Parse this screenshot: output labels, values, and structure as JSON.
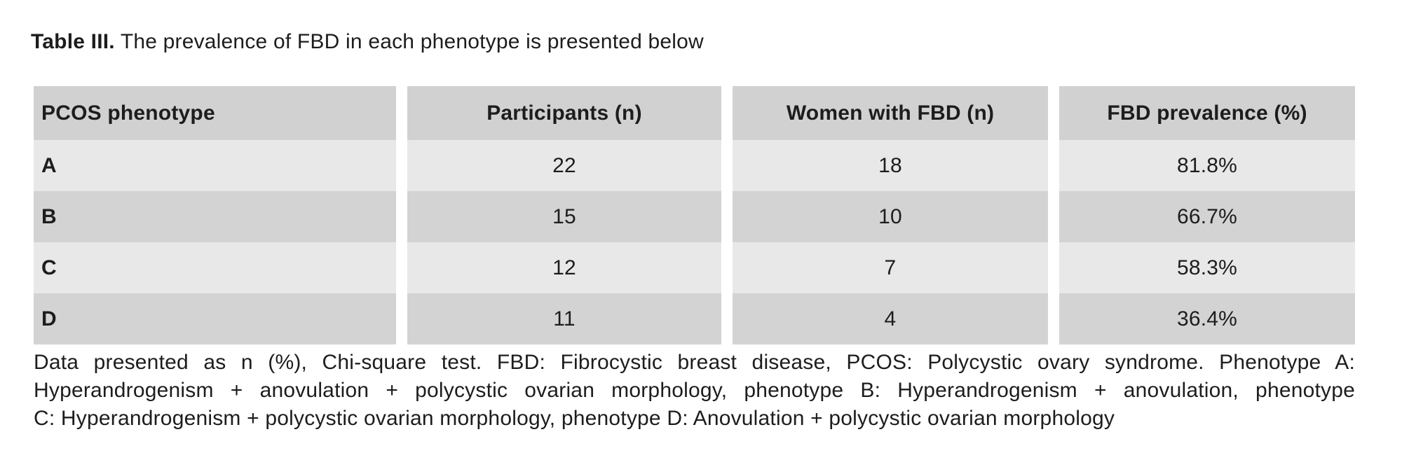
{
  "title": {
    "label": "Table III.",
    "text": "The prevalence of FBD in each phenotype is presented below"
  },
  "table": {
    "columns": [
      "PCOS phenotype",
      "Participants (n)",
      "Women with FBD (n)",
      "FBD prevalence (%)"
    ],
    "rows": [
      {
        "phenotype": "A",
        "participants": "22",
        "women_with_fbd": "18",
        "prevalence": "81.8%"
      },
      {
        "phenotype": "B",
        "participants": "15",
        "women_with_fbd": "10",
        "prevalence": "66.7%"
      },
      {
        "phenotype": "C",
        "participants": "12",
        "women_with_fbd": "7",
        "prevalence": "58.3%"
      },
      {
        "phenotype": "D",
        "participants": "11",
        "women_with_fbd": "4",
        "prevalence": "36.4%"
      }
    ]
  },
  "footnote": {
    "lines": [
      "Data presented as n (%), Chi-square test. FBD: Fibrocystic breast disease, PCOS: Polycystic ovary syndrome. Phenotype A:",
      "Hyperandrogenism + anovulation + polycystic ovarian morphology, phenotype B: Hyperandrogenism + anovulation, phenotype",
      "C: Hyperandrogenism + polycystic ovarian morphology, phenotype D: Anovulation + polycystic ovarian morphology"
    ]
  },
  "colors": {
    "header_bg": "#d1d1d1",
    "row_light_bg": "#e8e8e8",
    "row_dark_bg": "#d3d3d3",
    "text": "#1d1d1d",
    "background": "#ffffff"
  }
}
